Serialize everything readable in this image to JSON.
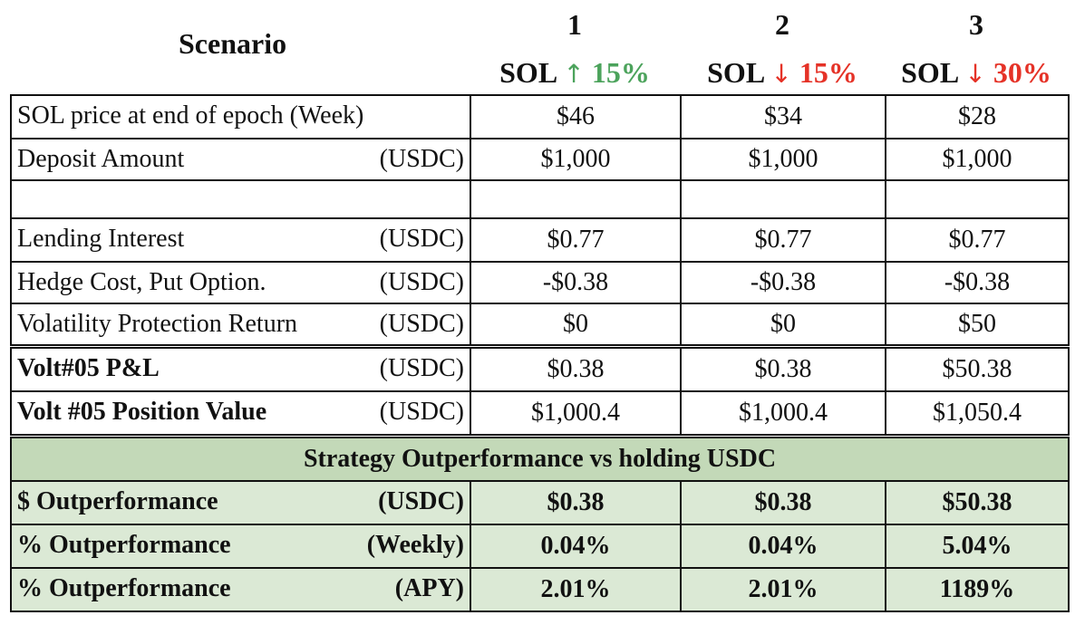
{
  "header": {
    "scenario_title": "Scenario",
    "columns": [
      {
        "number": "1",
        "asset": "SOL",
        "arrow": "↑",
        "change": "15%",
        "direction": "up"
      },
      {
        "number": "2",
        "asset": "SOL",
        "arrow": "↓",
        "change": "15%",
        "direction": "down"
      },
      {
        "number": "3",
        "asset": "SOL",
        "arrow": "↓",
        "change": "30%",
        "direction": "down"
      }
    ]
  },
  "colors": {
    "up": "#4ca35c",
    "down": "#e53227",
    "summary_header_bg": "#c3d9b8",
    "summary_row_bg": "#dbe9d5"
  },
  "rows": {
    "sol_price": {
      "label": "SOL price at end of epoch (Week)",
      "unit": "",
      "values": [
        "$46",
        "$34",
        "$28"
      ]
    },
    "deposit": {
      "label": "Deposit Amount",
      "unit": "(USDC)",
      "values": [
        "$1,000",
        "$1,000",
        "$1,000"
      ]
    },
    "lending": {
      "label": "Lending Interest",
      "unit": "(USDC)",
      "values": [
        "$0.77",
        "$0.77",
        "$0.77"
      ]
    },
    "hedge": {
      "label": "Hedge Cost, Put Option.",
      "unit": "(USDC)",
      "values": [
        "-$0.38",
        "-$0.38",
        "-$0.38"
      ]
    },
    "volatility": {
      "label": "Volatility Protection Return",
      "unit": "(USDC)",
      "values": [
        "$0",
        "$0",
        "$50"
      ]
    },
    "pnl": {
      "label": "Volt#05 P&L",
      "unit": "(USDC)",
      "values": [
        "$0.38",
        "$0.38",
        "$50.38"
      ]
    },
    "position": {
      "label": "Volt #05 Position Value",
      "unit": "(USDC)",
      "values": [
        "$1,000.4",
        "$1,000.4",
        "$1,050.4"
      ]
    }
  },
  "summary": {
    "title": "Strategy Outperformance vs holding USDC",
    "rows": {
      "dollar": {
        "label": "$ Outperformance",
        "unit": "(USDC)",
        "values": [
          "$0.38",
          "$0.38",
          "$50.38"
        ]
      },
      "weekly": {
        "label": "% Outperformance",
        "unit": "(Weekly)",
        "values": [
          "0.04%",
          "0.04%",
          "5.04%"
        ]
      },
      "apy": {
        "label": "% Outperformance",
        "unit": "(APY)",
        "values": [
          "2.01%",
          "2.01%",
          "1189%"
        ]
      }
    }
  }
}
